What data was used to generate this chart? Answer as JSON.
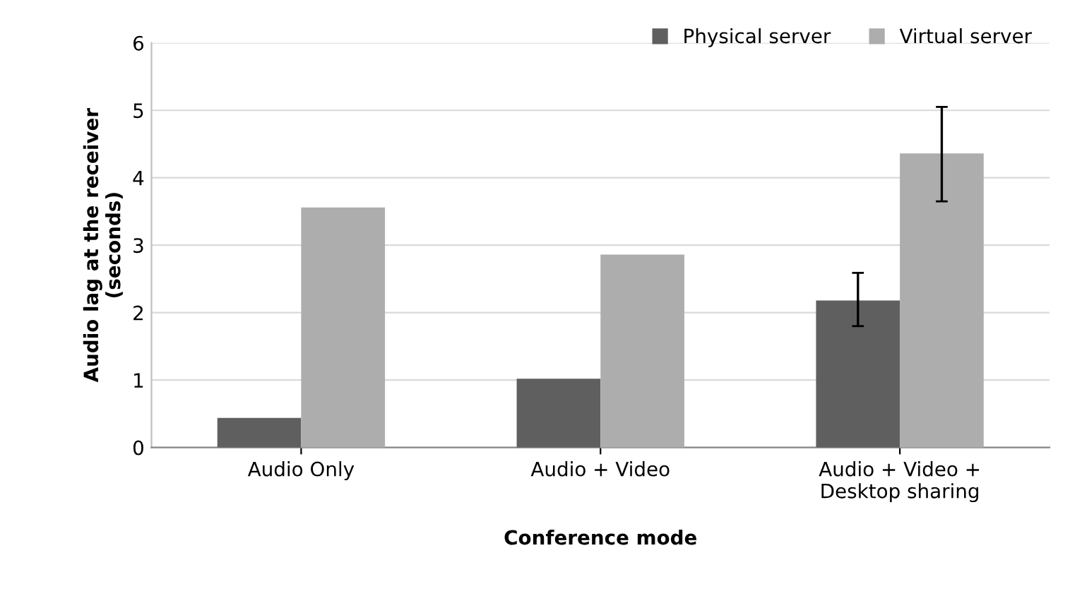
{
  "chart_data": {
    "type": "bar",
    "xlabel": "Conference mode",
    "ylabel": "Audio lag at the receiver\n(seconds)",
    "categories": [
      "Audio Only",
      "Audio + Video",
      "Audio + Video +\nDesktop sharing"
    ],
    "series": [
      {
        "name": "Physical server",
        "color": "#5f5f5f",
        "values": [
          0.44,
          1.02,
          2.18
        ],
        "errors": [
          null,
          null,
          [
            1.8,
            2.59
          ]
        ]
      },
      {
        "name": "Virtual server",
        "color": "#adadad",
        "values": [
          3.56,
          2.86,
          4.36
        ],
        "errors": [
          null,
          null,
          [
            3.65,
            5.05
          ]
        ]
      }
    ],
    "ylim": [
      0,
      6
    ],
    "yticks": [
      0,
      1,
      2,
      3,
      4,
      5,
      6
    ],
    "grid": "y",
    "legend": "top right"
  }
}
